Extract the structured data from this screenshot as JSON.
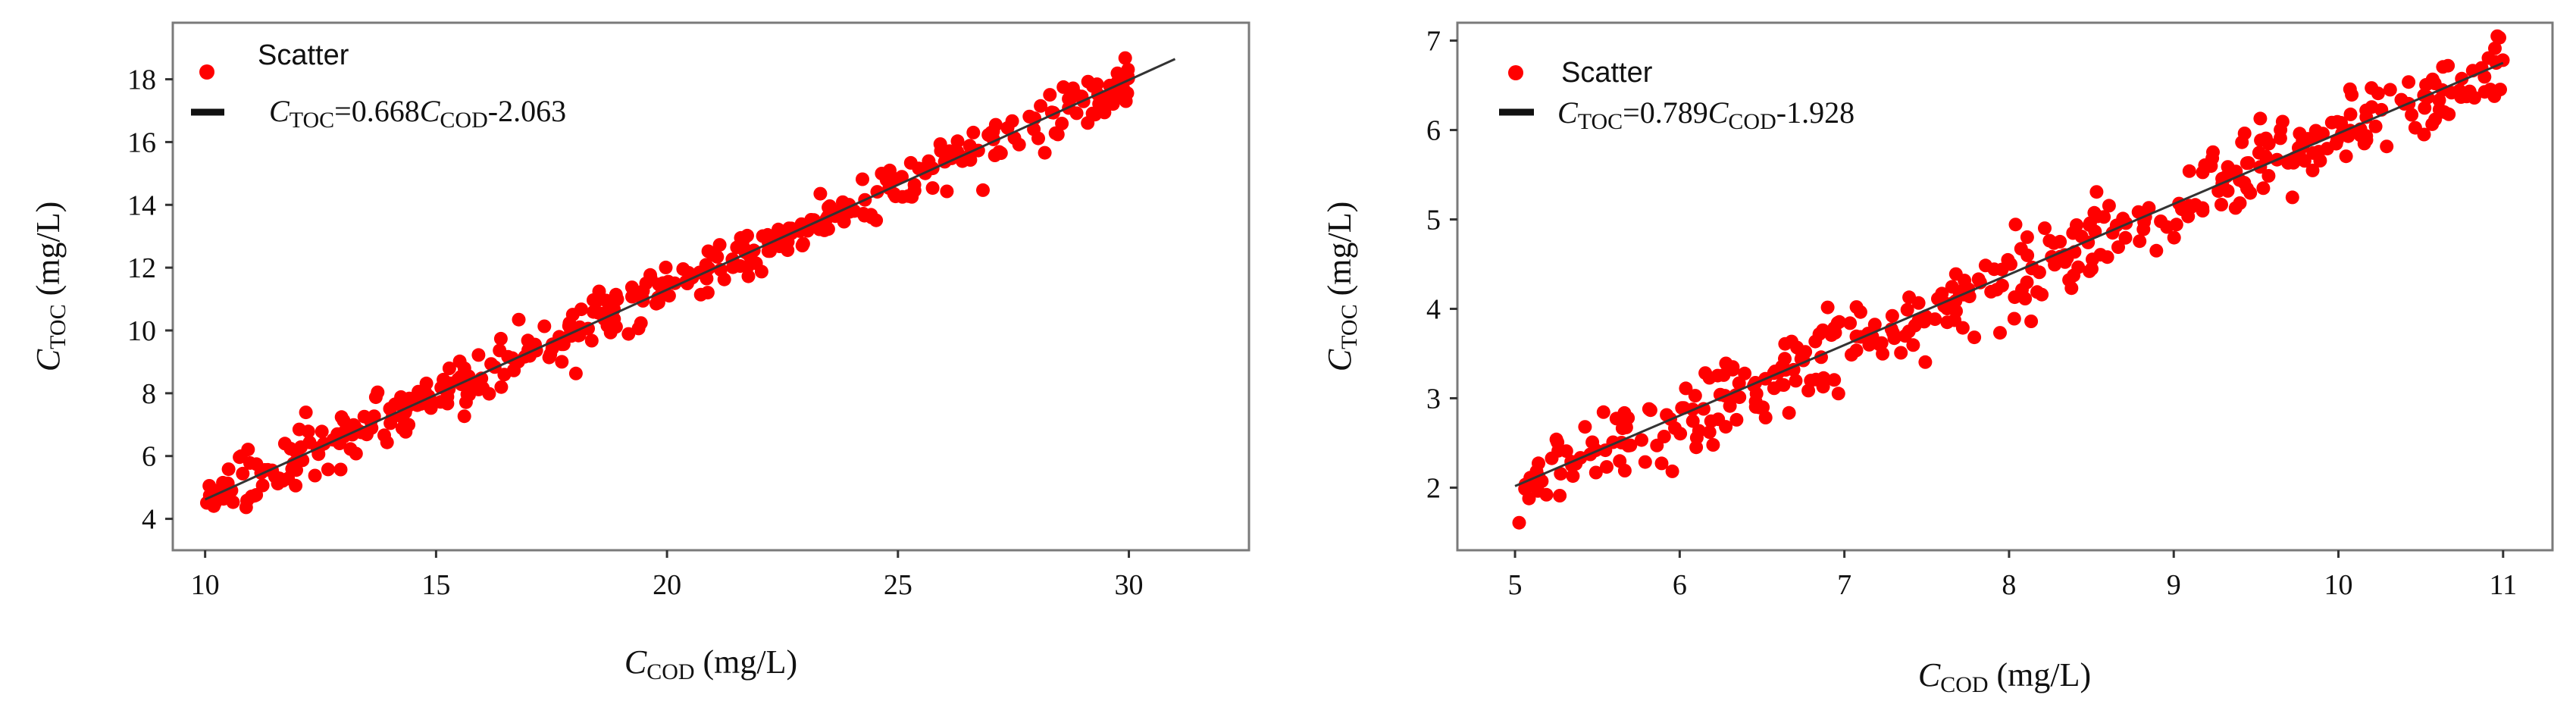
{
  "chart_data": [
    {
      "type": "scatter",
      "title": "",
      "xlabel": {
        "main": "C",
        "sub": "COD",
        "unit": " (mg/L)"
      },
      "ylabel": {
        "main": "C",
        "sub": "TOC",
        "unit": " (mg/L)"
      },
      "xlim": [
        9.3,
        32.6
      ],
      "ylim": [
        3.0,
        19.8
      ],
      "xticks": [
        "10",
        "15",
        "20",
        "25",
        "30"
      ],
      "yticks": [
        "4",
        "6",
        "8",
        "10",
        "12",
        "14",
        "16",
        "18"
      ],
      "legend": {
        "position": "top-left",
        "scatter_label": "Scatter",
        "fit_label": {
          "a": "C",
          "a_sub": "TOC",
          "mid": "=0.668",
          "b": "C",
          "b_sub": "COD",
          "tail": "-2.063"
        }
      },
      "fit": {
        "slope": 0.668,
        "intercept": -2.063,
        "x_range": [
          10,
          31
        ]
      },
      "series": [
        {
          "name": "Scatter",
          "n_points": 400,
          "x_range": [
            10,
            30
          ],
          "noise_sd": 0.4
        }
      ]
    },
    {
      "type": "scatter",
      "title": "",
      "xlabel": {
        "main": "C",
        "sub": "COD",
        "unit": " (mg/L)"
      },
      "ylabel": {
        "main": "C",
        "sub": "TOC",
        "unit": " (mg/L)"
      },
      "xlim": [
        4.65,
        11.3
      ],
      "ylim": [
        1.3,
        7.2
      ],
      "xticks": [
        "5",
        "6",
        "7",
        "8",
        "9",
        "10",
        "11"
      ],
      "yticks": [
        "2",
        "3",
        "4",
        "5",
        "6",
        "7"
      ],
      "legend": {
        "position": "top-left",
        "scatter_label": "Scatter",
        "fit_label": {
          "a": "C",
          "a_sub": "TOC",
          "mid": "=0.789",
          "b": "C",
          "b_sub": "COD",
          "tail": "-1.928"
        }
      },
      "fit": {
        "slope": 0.789,
        "intercept": -1.928,
        "x_range": [
          5,
          11
        ]
      },
      "series": [
        {
          "name": "Scatter",
          "n_points": 400,
          "x_range": [
            5,
            11
          ],
          "noise_sd": 0.22
        }
      ]
    }
  ],
  "colors": {
    "point": "#ff0000",
    "fit_line": "#333333",
    "frame": "#7a7a7a"
  }
}
